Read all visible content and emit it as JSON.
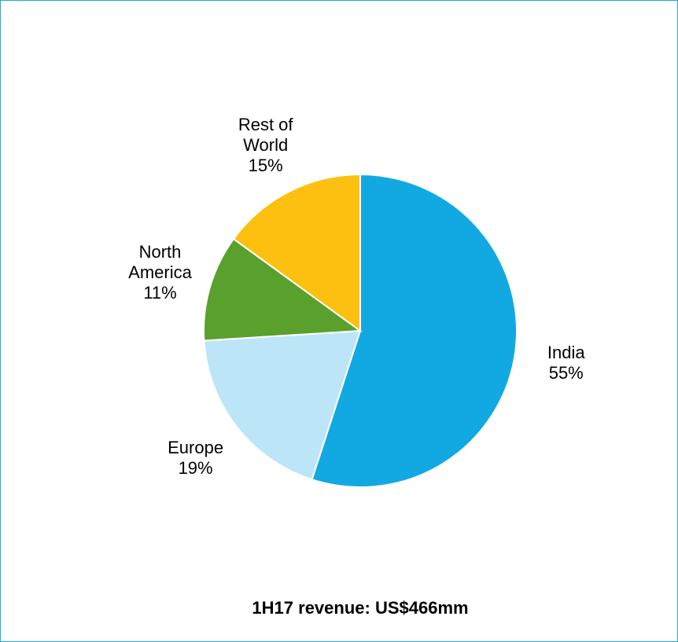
{
  "chart_data": {
    "type": "pie",
    "title": "1H17 revenue: US$466mm",
    "categories": [
      "India",
      "Europe",
      "North America",
      "Rest of World"
    ],
    "values": [
      55,
      19,
      11,
      15
    ],
    "value_labels": [
      "55%",
      "19%",
      "11%",
      "15%"
    ],
    "colors": [
      "#12a9e2",
      "#bde5f8",
      "#5aa02c",
      "#fdc010"
    ]
  }
}
